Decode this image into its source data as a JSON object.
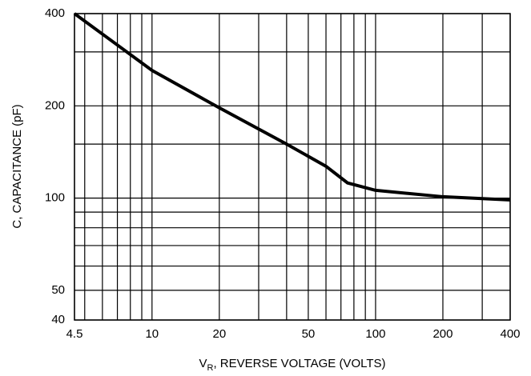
{
  "chart_data": {
    "type": "line",
    "x_label_main": "V",
    "x_label_sub": "R",
    "x_label_rest": ", REVERSE VOLTAGE (VOLTS)",
    "y_label": "C, CAPACITANCE (pF)",
    "x_log": true,
    "y_log": true,
    "grid": true,
    "xlim": [
      4.5,
      400
    ],
    "xticks": [
      4.5,
      10,
      20,
      50,
      100,
      200,
      400
    ],
    "x_minor_grid": [
      5,
      6,
      7,
      8,
      9,
      30,
      40,
      60,
      70,
      80,
      90,
      300
    ],
    "ylim": [
      40,
      400
    ],
    "yticks": [
      40,
      50,
      100,
      200,
      400
    ],
    "y_minor_grid": [
      60,
      70,
      80,
      90,
      150,
      300
    ],
    "series": [
      {
        "color": "#000000",
        "x": [
          4.5,
          10,
          20,
          40,
          60,
          75,
          100,
          200,
          400
        ],
        "values": [
          400,
          261,
          197,
          150,
          127,
          112,
          106,
          101,
          98.6
        ]
      }
    ]
  }
}
